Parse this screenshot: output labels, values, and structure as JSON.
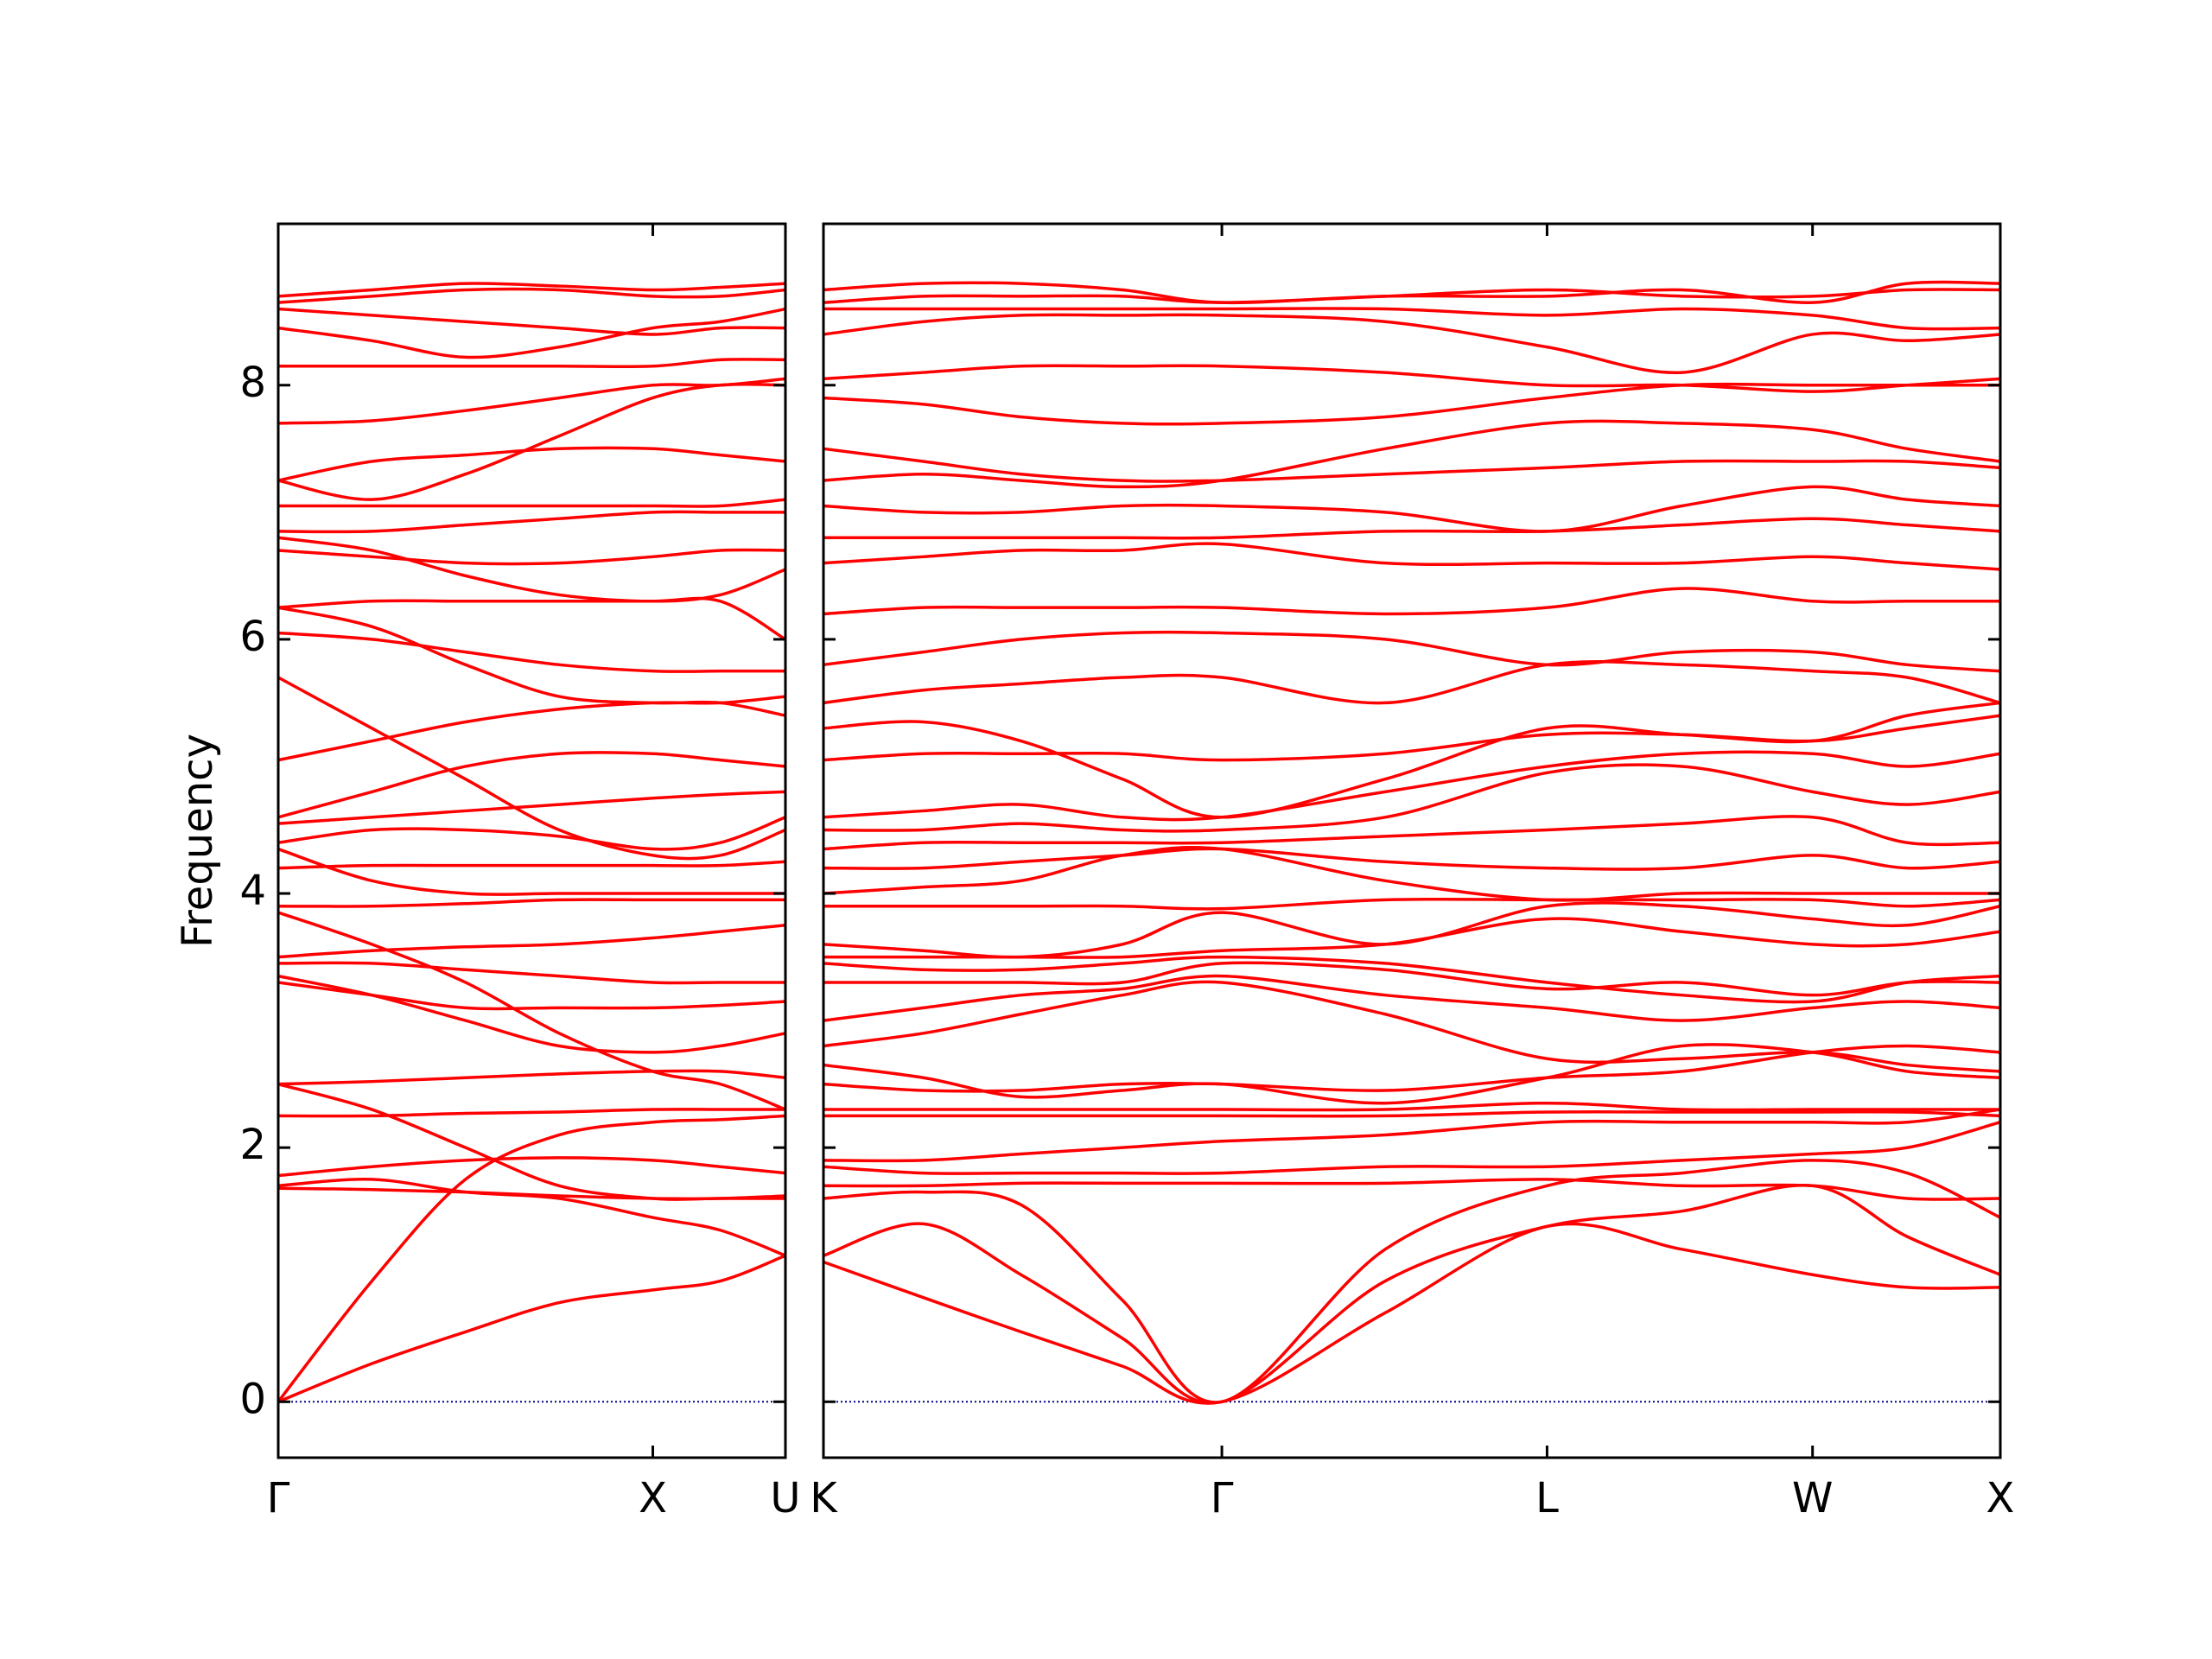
{
  "chart_data": [
    {
      "type": "line",
      "y_label": "Frequency",
      "color": "#ff0000",
      "zero_line": true,
      "zero_line_color": "#00008b",
      "xlim": [
        0,
        1.354
      ],
      "ylim": [
        -0.44,
        9.27
      ],
      "yticks": [
        0,
        2,
        4,
        6,
        8
      ],
      "show_ytick_labels": true,
      "xticks": [
        {
          "value": 0,
          "label": "Γ"
        },
        {
          "value": 1,
          "label": "X"
        },
        {
          "value": 1.354,
          "label": "U"
        }
      ],
      "x": [
        0,
        0.25,
        0.5,
        0.75,
        1.0,
        1.18,
        1.354
      ],
      "series": [
        {
          "values": [
            0,
            0.3,
            0.55,
            0.78,
            0.88,
            0.95,
            1.15
          ]
        },
        {
          "values": [
            0,
            0.95,
            1.75,
            2.1,
            2.2,
            2.22,
            2.25
          ]
        },
        {
          "values": [
            1.7,
            1.75,
            1.65,
            1.6,
            1.45,
            1.35,
            1.15
          ]
        },
        {
          "values": [
            1.78,
            1.85,
            1.9,
            1.92,
            1.9,
            1.85,
            1.8
          ]
        },
        {
          "values": [
            1.68,
            1.67,
            1.65,
            1.62,
            1.6,
            1.6,
            1.62
          ]
        },
        {
          "values": [
            2.25,
            2.25,
            2.27,
            2.28,
            2.3,
            2.3,
            2.3
          ]
        },
        {
          "values": [
            2.5,
            2.52,
            2.55,
            2.58,
            2.6,
            2.6,
            2.55
          ]
        },
        {
          "values": [
            2.5,
            2.3,
            2.0,
            1.7,
            1.6,
            1.6,
            1.6
          ]
        },
        {
          "values": [
            3.3,
            3.2,
            3.1,
            3.1,
            3.1,
            3.12,
            3.15
          ]
        },
        {
          "values": [
            3.35,
            3.2,
            3.0,
            2.8,
            2.75,
            2.8,
            2.9
          ]
        },
        {
          "values": [
            3.45,
            3.45,
            3.4,
            3.35,
            3.3,
            3.3,
            3.3
          ]
        },
        {
          "values": [
            3.5,
            3.55,
            3.58,
            3.6,
            3.65,
            3.7,
            3.75
          ]
        },
        {
          "values": [
            3.85,
            3.6,
            3.3,
            2.9,
            2.6,
            2.5,
            2.3
          ]
        },
        {
          "values": [
            3.9,
            3.9,
            3.92,
            3.95,
            3.95,
            3.95,
            3.95
          ]
        },
        {
          "values": [
            4.35,
            4.1,
            4.0,
            4.0,
            4.0,
            4.0,
            4.0
          ]
        },
        {
          "values": [
            4.2,
            4.22,
            4.22,
            4.22,
            4.22,
            4.22,
            4.25
          ]
        },
        {
          "values": [
            4.4,
            4.5,
            4.5,
            4.45,
            4.35,
            4.4,
            4.6
          ]
        },
        {
          "values": [
            4.55,
            4.6,
            4.65,
            4.7,
            4.75,
            4.78,
            4.8
          ]
        },
        {
          "values": [
            4.6,
            4.8,
            5.0,
            5.1,
            5.1,
            5.05,
            5.0
          ]
        },
        {
          "values": [
            5.05,
            5.2,
            5.35,
            5.45,
            5.5,
            5.5,
            5.55
          ]
        },
        {
          "values": [
            5.7,
            5.3,
            4.9,
            4.5,
            4.3,
            4.3,
            4.5
          ]
        },
        {
          "values": [
            6.05,
            6.0,
            5.9,
            5.8,
            5.75,
            5.75,
            5.75
          ]
        },
        {
          "values": [
            6.25,
            6.1,
            5.8,
            5.55,
            5.5,
            5.5,
            5.4
          ]
        },
        {
          "values": [
            6.25,
            6.3,
            6.3,
            6.3,
            6.3,
            6.3,
            6.0
          ]
        },
        {
          "values": [
            6.7,
            6.65,
            6.6,
            6.6,
            6.65,
            6.7,
            6.7
          ]
        },
        {
          "values": [
            6.8,
            6.7,
            6.5,
            6.35,
            6.3,
            6.35,
            6.55
          ]
        },
        {
          "values": [
            6.85,
            6.85,
            6.9,
            6.95,
            7.0,
            7.0,
            7.0
          ]
        },
        {
          "values": [
            7.05,
            7.05,
            7.05,
            7.05,
            7.05,
            7.05,
            7.1
          ]
        },
        {
          "values": [
            7.25,
            7.4,
            7.45,
            7.5,
            7.5,
            7.45,
            7.4
          ]
        },
        {
          "values": [
            7.25,
            7.1,
            7.3,
            7.6,
            7.9,
            8.0,
            8.0
          ]
        },
        {
          "values": [
            7.7,
            7.72,
            7.8,
            7.9,
            8.0,
            8.0,
            8.05
          ]
        },
        {
          "values": [
            8.15,
            8.15,
            8.15,
            8.15,
            8.15,
            8.2,
            8.2
          ]
        },
        {
          "values": [
            8.45,
            8.35,
            8.22,
            8.3,
            8.45,
            8.5,
            8.6
          ]
        },
        {
          "values": [
            8.6,
            8.55,
            8.5,
            8.45,
            8.4,
            8.45,
            8.45
          ]
        },
        {
          "values": [
            8.65,
            8.7,
            8.75,
            8.75,
            8.7,
            8.7,
            8.75
          ]
        },
        {
          "values": [
            8.7,
            8.75,
            8.8,
            8.78,
            8.75,
            8.77,
            8.8
          ]
        }
      ]
    },
    {
      "type": "line",
      "color": "#ff0000",
      "zero_line": true,
      "zero_line_color": "#00008b",
      "xlim": [
        1.354,
        4.488
      ],
      "ylim": [
        -0.44,
        9.27
      ],
      "yticks": [
        0,
        2,
        4,
        6,
        8
      ],
      "show_ytick_labels": false,
      "xticks": [
        {
          "value": 1.354,
          "label": "K"
        },
        {
          "value": 2.415,
          "label": "Γ"
        },
        {
          "value": 3.281,
          "label": "L"
        },
        {
          "value": 3.988,
          "label": "W"
        },
        {
          "value": 4.488,
          "label": "X"
        }
      ],
      "x": [
        1.354,
        1.62,
        1.88,
        2.15,
        2.415,
        2.85,
        3.281,
        3.64,
        3.988,
        4.24,
        4.488
      ],
      "series": [
        {
          "values": [
            1.1,
            0.82,
            0.55,
            0.28,
            0,
            0.7,
            1.38,
            1.2,
            1.0,
            0.9,
            0.9
          ]
        },
        {
          "values": [
            1.15,
            1.4,
            1.0,
            0.5,
            0,
            0.95,
            1.38,
            1.5,
            1.7,
            1.3,
            1.0
          ]
        },
        {
          "values": [
            1.6,
            1.65,
            1.55,
            0.8,
            0,
            1.2,
            1.7,
            1.8,
            1.9,
            1.8,
            1.45
          ]
        },
        {
          "values": [
            1.7,
            1.7,
            1.72,
            1.72,
            1.72,
            1.72,
            1.75,
            1.7,
            1.7,
            1.6,
            1.6
          ]
        },
        {
          "values": [
            1.85,
            1.8,
            1.8,
            1.8,
            1.8,
            1.85,
            1.85,
            1.9,
            1.95,
            2.0,
            2.2
          ]
        },
        {
          "values": [
            1.9,
            1.9,
            1.95,
            2.0,
            2.05,
            2.1,
            2.2,
            2.2,
            2.2,
            2.2,
            2.3
          ]
        },
        {
          "values": [
            2.25,
            2.25,
            2.25,
            2.25,
            2.25,
            2.25,
            2.28,
            2.28,
            2.28,
            2.28,
            2.25
          ]
        },
        {
          "values": [
            2.3,
            2.3,
            2.3,
            2.3,
            2.3,
            2.3,
            2.35,
            2.3,
            2.3,
            2.3,
            2.3
          ]
        },
        {
          "values": [
            2.5,
            2.45,
            2.45,
            2.5,
            2.5,
            2.45,
            2.55,
            2.6,
            2.75,
            2.8,
            2.75
          ]
        },
        {
          "values": [
            2.65,
            2.55,
            2.4,
            2.45,
            2.5,
            2.35,
            2.55,
            2.8,
            2.75,
            2.6,
            2.55
          ]
        },
        {
          "values": [
            2.8,
            2.9,
            3.05,
            3.2,
            3.3,
            3.05,
            2.7,
            2.7,
            2.75,
            2.65,
            2.6
          ]
        },
        {
          "values": [
            3.0,
            3.1,
            3.2,
            3.25,
            3.35,
            3.2,
            3.1,
            3.0,
            3.1,
            3.15,
            3.1
          ]
        },
        {
          "values": [
            3.3,
            3.3,
            3.3,
            3.3,
            3.45,
            3.4,
            3.25,
            3.3,
            3.2,
            3.3,
            3.3
          ]
        },
        {
          "values": [
            3.45,
            3.4,
            3.4,
            3.45,
            3.5,
            3.45,
            3.3,
            3.2,
            3.15,
            3.3,
            3.35
          ]
        },
        {
          "values": [
            3.5,
            3.5,
            3.5,
            3.5,
            3.55,
            3.6,
            3.8,
            3.7,
            3.6,
            3.6,
            3.7
          ]
        },
        {
          "values": [
            3.6,
            3.55,
            3.5,
            3.6,
            3.85,
            3.6,
            3.9,
            3.9,
            3.8,
            3.75,
            3.9
          ]
        },
        {
          "values": [
            3.9,
            3.9,
            3.9,
            3.9,
            3.88,
            3.95,
            3.95,
            3.95,
            3.95,
            3.9,
            3.95
          ]
        },
        {
          "values": [
            4.0,
            4.05,
            4.1,
            4.3,
            4.35,
            4.1,
            3.95,
            4.0,
            4.0,
            4.0,
            4.0
          ]
        },
        {
          "values": [
            4.2,
            4.2,
            4.25,
            4.3,
            4.35,
            4.25,
            4.2,
            4.2,
            4.3,
            4.2,
            4.25
          ]
        },
        {
          "values": [
            4.35,
            4.4,
            4.4,
            4.4,
            4.4,
            4.45,
            4.5,
            4.55,
            4.6,
            4.4,
            4.4
          ]
        },
        {
          "values": [
            4.5,
            4.5,
            4.55,
            4.5,
            4.5,
            4.6,
            4.95,
            5.0,
            4.8,
            4.7,
            4.8
          ]
        },
        {
          "values": [
            4.6,
            4.65,
            4.7,
            4.6,
            4.6,
            4.8,
            5.0,
            5.1,
            5.1,
            5.0,
            5.1
          ]
        },
        {
          "values": [
            5.05,
            5.1,
            5.1,
            5.1,
            5.05,
            5.1,
            5.25,
            5.25,
            5.2,
            5.3,
            5.4
          ]
        },
        {
          "values": [
            5.3,
            5.35,
            5.2,
            4.9,
            4.6,
            4.9,
            5.3,
            5.25,
            5.2,
            5.4,
            5.5
          ]
        },
        {
          "values": [
            5.5,
            5.6,
            5.65,
            5.7,
            5.7,
            5.5,
            5.8,
            5.8,
            5.75,
            5.7,
            5.5
          ]
        },
        {
          "values": [
            5.8,
            5.9,
            6.0,
            6.05,
            6.05,
            6.0,
            5.8,
            5.9,
            5.9,
            5.8,
            5.75
          ]
        },
        {
          "values": [
            6.2,
            6.25,
            6.25,
            6.25,
            6.25,
            6.2,
            6.25,
            6.4,
            6.3,
            6.3,
            6.3
          ]
        },
        {
          "values": [
            6.6,
            6.65,
            6.7,
            6.7,
            6.75,
            6.6,
            6.6,
            6.6,
            6.65,
            6.6,
            6.55
          ]
        },
        {
          "values": [
            6.8,
            6.8,
            6.8,
            6.8,
            6.8,
            6.85,
            6.85,
            6.9,
            6.95,
            6.9,
            6.85
          ]
        },
        {
          "values": [
            7.05,
            7.0,
            7.0,
            7.05,
            7.05,
            7.0,
            6.85,
            7.05,
            7.2,
            7.1,
            7.05
          ]
        },
        {
          "values": [
            7.25,
            7.3,
            7.25,
            7.2,
            7.25,
            7.5,
            7.7,
            7.7,
            7.65,
            7.5,
            7.4
          ]
        },
        {
          "values": [
            7.5,
            7.4,
            7.3,
            7.25,
            7.25,
            7.3,
            7.35,
            7.4,
            7.4,
            7.4,
            7.35
          ]
        },
        {
          "values": [
            7.9,
            7.85,
            7.75,
            7.7,
            7.7,
            7.75,
            7.9,
            8.0,
            8.0,
            8.0,
            8.0
          ]
        },
        {
          "values": [
            8.05,
            8.1,
            8.15,
            8.15,
            8.15,
            8.1,
            8.0,
            8.0,
            7.95,
            8.0,
            8.05
          ]
        },
        {
          "values": [
            8.4,
            8.5,
            8.55,
            8.55,
            8.55,
            8.5,
            8.3,
            8.1,
            8.4,
            8.35,
            8.4
          ]
        },
        {
          "values": [
            8.6,
            8.6,
            8.6,
            8.6,
            8.6,
            8.6,
            8.55,
            8.6,
            8.55,
            8.45,
            8.45
          ]
        },
        {
          "values": [
            8.65,
            8.7,
            8.7,
            8.7,
            8.65,
            8.7,
            8.75,
            8.7,
            8.7,
            8.75,
            8.75
          ]
        },
        {
          "values": [
            8.75,
            8.8,
            8.8,
            8.75,
            8.65,
            8.7,
            8.7,
            8.75,
            8.65,
            8.8,
            8.8
          ]
        }
      ]
    }
  ]
}
